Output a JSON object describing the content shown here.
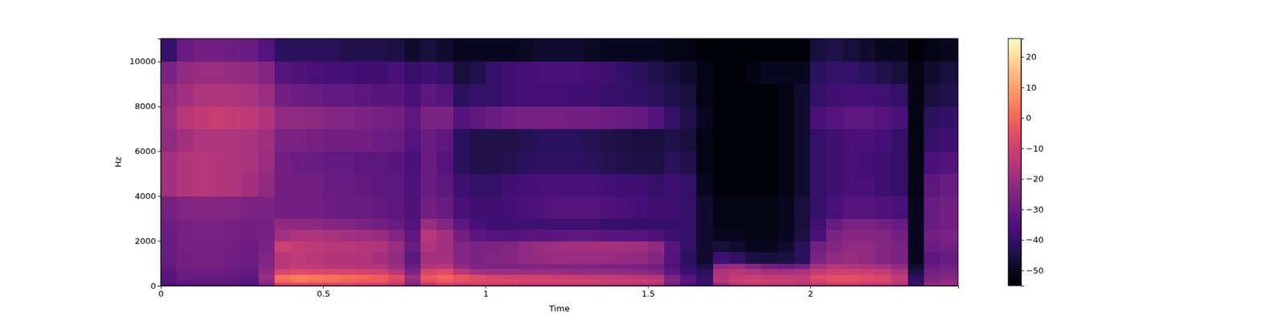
{
  "chart_data": {
    "type": "heatmap",
    "x_label": "Time",
    "y_label": "Hz",
    "xlim": [
      0,
      2.455
    ],
    "ylim": [
      0,
      11025
    ],
    "xticks": [
      0,
      0.5,
      1,
      1.5,
      2
    ],
    "yticks": [
      0,
      2000,
      4000,
      6000,
      8000,
      10000
    ],
    "x_edges": [
      0,
      0.05,
      0.1,
      0.15,
      0.2,
      0.25,
      0.3,
      0.35,
      0.4,
      0.45,
      0.5,
      0.55,
      0.6,
      0.65,
      0.7,
      0.75,
      0.8,
      0.85,
      0.9,
      0.95,
      1,
      1.05,
      1.1,
      1.15,
      1.2,
      1.25,
      1.3,
      1.35,
      1.4,
      1.45,
      1.5,
      1.55,
      1.6,
      1.65,
      1.7,
      1.75,
      1.8,
      1.85,
      1.9,
      1.95,
      2,
      2.05,
      2.1,
      2.15,
      2.2,
      2.25,
      2.3,
      2.35,
      2.4,
      2.455
    ],
    "y_edges": [
      0,
      150,
      300,
      500,
      750,
      1000,
      1500,
      2000,
      2500,
      3000,
      4000,
      5000,
      6000,
      7000,
      8000,
      9000,
      10000,
      11025
    ],
    "cells": [
      [
        -35,
        -33,
        -32,
        -32,
        -33,
        -34,
        -25,
        -8,
        -6,
        -6,
        -7,
        -7,
        -8,
        -9,
        -12,
        -25,
        -12,
        -8,
        -10,
        -10,
        -10,
        -11,
        -12,
        -12,
        -12,
        -12,
        -13,
        -13,
        -14,
        -15,
        -16,
        -28,
        -35,
        -40,
        -20,
        -14,
        -13,
        -13,
        -14,
        -15,
        -12,
        -11,
        -11,
        -12,
        -12,
        -15,
        -40,
        -22,
        -20
      ],
      [
        -34,
        -32,
        -31,
        -31,
        -32,
        -33,
        -22,
        0,
        3,
        2,
        1,
        0,
        -2,
        -3,
        -8,
        -22,
        -5,
        -2,
        -5,
        -6,
        -7,
        -7,
        -8,
        -8,
        -8,
        -9,
        -9,
        -10,
        -10,
        -11,
        -12,
        -25,
        -33,
        -38,
        -14,
        -10,
        -9,
        -10,
        -10,
        -12,
        -8,
        -6,
        -6,
        -7,
        -8,
        -12,
        -40,
        -25,
        -22
      ],
      [
        -33,
        -30,
        -30,
        -30,
        -31,
        -32,
        -20,
        2,
        4,
        3,
        2,
        1,
        0,
        -2,
        -6,
        -20,
        -3,
        0,
        -4,
        -6,
        -8,
        -9,
        -10,
        -10,
        -11,
        -11,
        -12,
        -12,
        -13,
        -14,
        -15,
        -26,
        -34,
        -40,
        -16,
        -12,
        -11,
        -12,
        -12,
        -13,
        -6,
        -5,
        -5,
        -6,
        -8,
        -12,
        -42,
        -26,
        -24
      ],
      [
        -32,
        -29,
        -29,
        -29,
        -30,
        -31,
        -22,
        -8,
        -6,
        -7,
        -8,
        -8,
        -9,
        -10,
        -14,
        -26,
        -8,
        -6,
        -14,
        -18,
        -20,
        -20,
        -20,
        -20,
        -20,
        -21,
        -21,
        -22,
        -22,
        -23,
        -24,
        -32,
        -38,
        -42,
        -16,
        -14,
        -16,
        -18,
        -18,
        -17,
        -12,
        -10,
        -10,
        -11,
        -12,
        -16,
        -45,
        -28,
        -26
      ],
      [
        -31,
        -28,
        -28,
        -28,
        -29,
        -30,
        -24,
        -14,
        -12,
        -13,
        -14,
        -14,
        -15,
        -16,
        -20,
        -30,
        -15,
        -14,
        -22,
        -25,
        -26,
        -26,
        -26,
        -25,
        -25,
        -25,
        -25,
        -26,
        -26,
        -27,
        -28,
        -35,
        -40,
        -45,
        -22,
        -20,
        -24,
        -28,
        -30,
        -28,
        -18,
        -14,
        -16,
        -17,
        -18,
        -22,
        -48,
        -30,
        -28
      ],
      [
        -30,
        -28,
        -27,
        -27,
        -28,
        -29,
        -25,
        -14,
        -13,
        -14,
        -15,
        -15,
        -16,
        -18,
        -22,
        -32,
        -18,
        -18,
        -24,
        -26,
        -25,
        -24,
        -22,
        -21,
        -20,
        -20,
        -20,
        -20,
        -21,
        -22,
        -24,
        -34,
        -42,
        -48,
        -38,
        -40,
        -45,
        -46,
        -45,
        -42,
        -26,
        -22,
        -20,
        -22,
        -24,
        -26,
        -50,
        -32,
        -30
      ],
      [
        -30,
        -27,
        -27,
        -27,
        -28,
        -29,
        -26,
        -10,
        -12,
        -13,
        -14,
        -14,
        -15,
        -16,
        -20,
        -30,
        -16,
        -18,
        -25,
        -26,
        -26,
        -25,
        -22,
        -20,
        -19,
        -18,
        -18,
        -18,
        -18,
        -19,
        -22,
        -33,
        -40,
        -48,
        -46,
        -48,
        -50,
        -50,
        -48,
        -42,
        -28,
        -24,
        -22,
        -22,
        -24,
        -26,
        -50,
        -30,
        -28
      ],
      [
        -30,
        -27,
        -26,
        -26,
        -27,
        -28,
        -27,
        -18,
        -16,
        -16,
        -17,
        -18,
        -19,
        -20,
        -24,
        -32,
        -14,
        -18,
        -28,
        -32,
        -34,
        -34,
        -33,
        -33,
        -32,
        -32,
        -32,
        -33,
        -33,
        -34,
        -35,
        -38,
        -40,
        -48,
        -50,
        -50,
        -52,
        -52,
        -50,
        -45,
        -36,
        -26,
        -24,
        -24,
        -25,
        -28,
        -50,
        -28,
        -26
      ],
      [
        -29,
        -27,
        -26,
        -26,
        -27,
        -28,
        -27,
        -22,
        -22,
        -23,
        -24,
        -25,
        -26,
        -28,
        -30,
        -34,
        -20,
        -24,
        -32,
        -36,
        -38,
        -38,
        -38,
        -38,
        -38,
        -38,
        -38,
        -39,
        -39,
        -40,
        -40,
        -40,
        -40,
        -48,
        -52,
        -52,
        -52,
        -52,
        -50,
        -46,
        -38,
        -30,
        -26,
        -26,
        -28,
        -30,
        -50,
        -30,
        -28
      ],
      [
        -27,
        -25,
        -24,
        -24,
        -25,
        -26,
        -26,
        -28,
        -28,
        -28,
        -29,
        -30,
        -30,
        -31,
        -32,
        -35,
        -28,
        -30,
        -36,
        -38,
        -38,
        -37,
        -36,
        -35,
        -34,
        -34,
        -34,
        -35,
        -36,
        -37,
        -38,
        -38,
        -40,
        -48,
        -52,
        -52,
        -52,
        -52,
        -50,
        -46,
        -40,
        -36,
        -34,
        -34,
        -35,
        -36,
        -50,
        -30,
        -28
      ],
      [
        -18,
        -15,
        -14,
        -15,
        -16,
        -18,
        -22,
        -28,
        -28,
        -28,
        -30,
        -30,
        -31,
        -32,
        -32,
        -35,
        -30,
        -32,
        -38,
        -40,
        -40,
        -38,
        -37,
        -36,
        -36,
        -36,
        -36,
        -37,
        -38,
        -38,
        -40,
        -38,
        -40,
        -50,
        -54,
        -54,
        -54,
        -54,
        -52,
        -48,
        -40,
        -38,
        -36,
        -36,
        -38,
        -40,
        -52,
        -32,
        -30
      ],
      [
        -18,
        -15,
        -14,
        -15,
        -16,
        -17,
        -20,
        -28,
        -29,
        -30,
        -31,
        -31,
        -32,
        -32,
        -33,
        -36,
        -30,
        -34,
        -42,
        -44,
        -44,
        -43,
        -42,
        -41,
        -41,
        -41,
        -42,
        -43,
        -44,
        -45,
        -45,
        -42,
        -44,
        -52,
        -54,
        -54,
        -54,
        -54,
        -52,
        -48,
        -40,
        -38,
        -36,
        -37,
        -38,
        -40,
        -52,
        -36,
        -34
      ],
      [
        -22,
        -18,
        -16,
        -16,
        -16,
        -17,
        -19,
        -26,
        -26,
        -27,
        -28,
        -28,
        -28,
        -29,
        -30,
        -34,
        -30,
        -32,
        -42,
        -44,
        -44,
        -44,
        -43,
        -42,
        -42,
        -42,
        -43,
        -44,
        -45,
        -46,
        -46,
        -44,
        -46,
        -52,
        -54,
        -54,
        -54,
        -54,
        -52,
        -48,
        -40,
        -38,
        -36,
        -36,
        -37,
        -40,
        -52,
        -40,
        -38
      ],
      [
        -20,
        -14,
        -12,
        -11,
        -12,
        -13,
        -16,
        -22,
        -22,
        -23,
        -24,
        -25,
        -26,
        -27,
        -28,
        -32,
        -26,
        -26,
        -34,
        -32,
        -30,
        -28,
        -27,
        -27,
        -27,
        -28,
        -28,
        -29,
        -30,
        -31,
        -34,
        -40,
        -44,
        -50,
        -54,
        -54,
        -54,
        -54,
        -52,
        -48,
        -36,
        -34,
        -32,
        -32,
        -34,
        -36,
        -52,
        -42,
        -40
      ],
      [
        -22,
        -18,
        -16,
        -16,
        -16,
        -17,
        -20,
        -28,
        -29,
        -30,
        -31,
        -31,
        -32,
        -33,
        -33,
        -36,
        -32,
        -34,
        -42,
        -40,
        -40,
        -38,
        -37,
        -37,
        -37,
        -38,
        -38,
        -39,
        -40,
        -41,
        -42,
        -44,
        -46,
        -52,
        -54,
        -54,
        -54,
        -54,
        -52,
        -48,
        -40,
        -38,
        -37,
        -37,
        -38,
        -40,
        -52,
        -46,
        -44
      ],
      [
        -26,
        -22,
        -20,
        -20,
        -21,
        -22,
        -24,
        -34,
        -35,
        -36,
        -37,
        -37,
        -38,
        -38,
        -36,
        -40,
        -38,
        -40,
        -46,
        -44,
        -40,
        -38,
        -37,
        -36,
        -36,
        -36,
        -37,
        -38,
        -40,
        -42,
        -44,
        -46,
        -48,
        -52,
        -54,
        -54,
        -52,
        -50,
        -50,
        -50,
        -42,
        -40,
        -40,
        -42,
        -44,
        -46,
        -52,
        -48,
        -46
      ],
      [
        -40,
        -30,
        -28,
        -28,
        -29,
        -30,
        -34,
        -42,
        -42,
        -42,
        -42,
        -44,
        -44,
        -44,
        -45,
        -48,
        -46,
        -48,
        -50,
        -50,
        -50,
        -50,
        -49,
        -48,
        -48,
        -48,
        -49,
        -50,
        -50,
        -50,
        -50,
        -52,
        -52,
        -54,
        -54,
        -54,
        -54,
        -54,
        -54,
        -54,
        -46,
        -44,
        -46,
        -48,
        -50,
        -50,
        -54,
        -52,
        -50
      ]
    ],
    "colorbar": {
      "lim": [
        -55,
        26
      ],
      "ticks": [
        {
          "value": -50,
          "label": "−50"
        },
        {
          "value": -40,
          "label": "−40"
        },
        {
          "value": -30,
          "label": "−30"
        },
        {
          "value": -20,
          "label": "−20"
        },
        {
          "value": -10,
          "label": "−10"
        },
        0,
        10,
        20
      ]
    }
  }
}
